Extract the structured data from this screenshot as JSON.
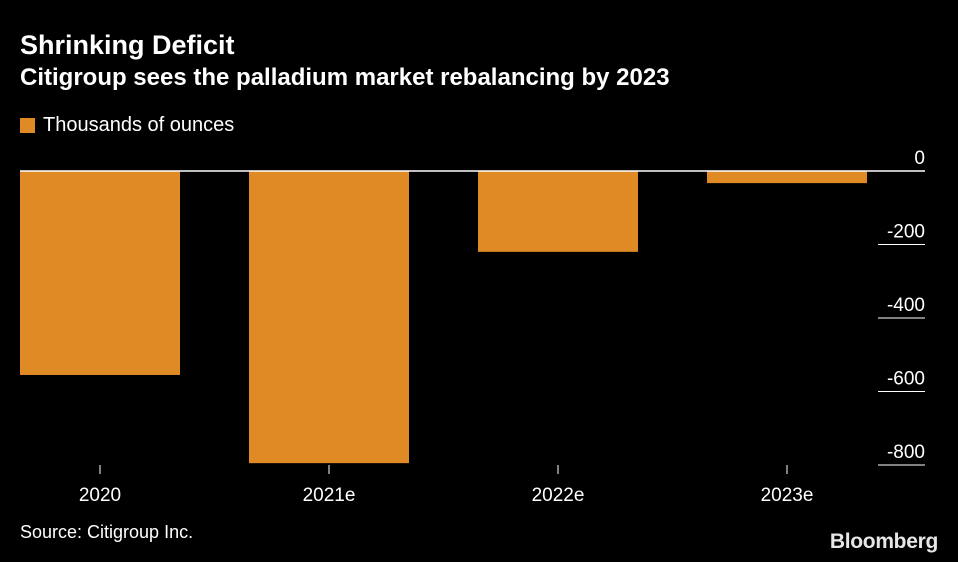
{
  "chart_data": {
    "type": "bar",
    "title": "Shrinking Deficit",
    "subtitle": "Citigroup sees the palladium market rebalancing by 2023",
    "categories": [
      "2020",
      "2021e",
      "2022e",
      "2023e"
    ],
    "series": [
      {
        "name": "Thousands of ounces",
        "values": [
          -555,
          -795,
          -220,
          -33
        ]
      }
    ],
    "ylim": [
      -800,
      0
    ],
    "yticks": [
      0,
      -200,
      -400,
      -600,
      -800
    ],
    "ytick_labels": [
      "0",
      "-200",
      "-400",
      "-600",
      "-800"
    ],
    "y_axis_position": "right",
    "grid": false,
    "legend_position": "top-left",
    "source": "Source: Citigroup Inc.",
    "colors": {
      "bar": "#E08A26",
      "background": "#000000",
      "text": "#FFFFFF",
      "zero_line": "#FFFFFF"
    }
  },
  "branding": {
    "logo_text": "Bloomberg"
  }
}
